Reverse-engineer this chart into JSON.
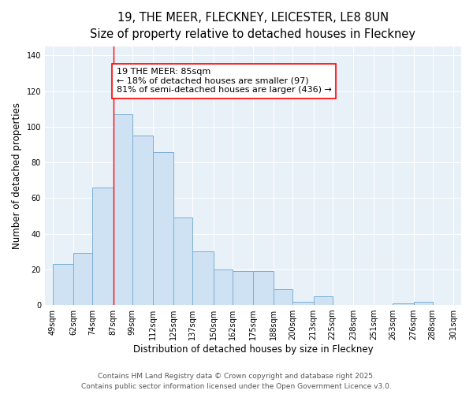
{
  "title_line1": "19, THE MEER, FLECKNEY, LEICESTER, LE8 8UN",
  "title_line2": "Size of property relative to detached houses in Fleckney",
  "xlabel": "Distribution of detached houses by size in Fleckney",
  "ylabel": "Number of detached properties",
  "bar_color": "#cfe2f3",
  "bar_edge_color": "#7bafd4",
  "background_color": "#e8f0f8",
  "grid_color": "#ffffff",
  "annotation_title": "19 THE MEER: 85sqm",
  "annotation_line1": "← 18% of detached houses are smaller (97)",
  "annotation_line2": "81% of semi-detached houses are larger (436) →",
  "redline_x": 87,
  "bins": [
    49,
    62,
    74,
    87,
    99,
    112,
    125,
    137,
    150,
    162,
    175,
    188,
    200,
    213,
    225,
    238,
    251,
    263,
    276,
    288,
    301
  ],
  "counts": [
    23,
    29,
    66,
    107,
    95,
    86,
    49,
    30,
    20,
    19,
    19,
    9,
    2,
    5,
    0,
    0,
    0,
    1,
    2,
    0
  ],
  "ylim": [
    0,
    145
  ],
  "yticks": [
    0,
    20,
    40,
    60,
    80,
    100,
    120,
    140
  ],
  "footer1": "Contains HM Land Registry data © Crown copyright and database right 2025.",
  "footer2": "Contains public sector information licensed under the Open Government Licence v3.0.",
  "title_fontsize": 10.5,
  "subtitle_fontsize": 9.5,
  "axis_label_fontsize": 8.5,
  "tick_fontsize": 7,
  "footer_fontsize": 6.5,
  "annotation_fontsize": 8
}
